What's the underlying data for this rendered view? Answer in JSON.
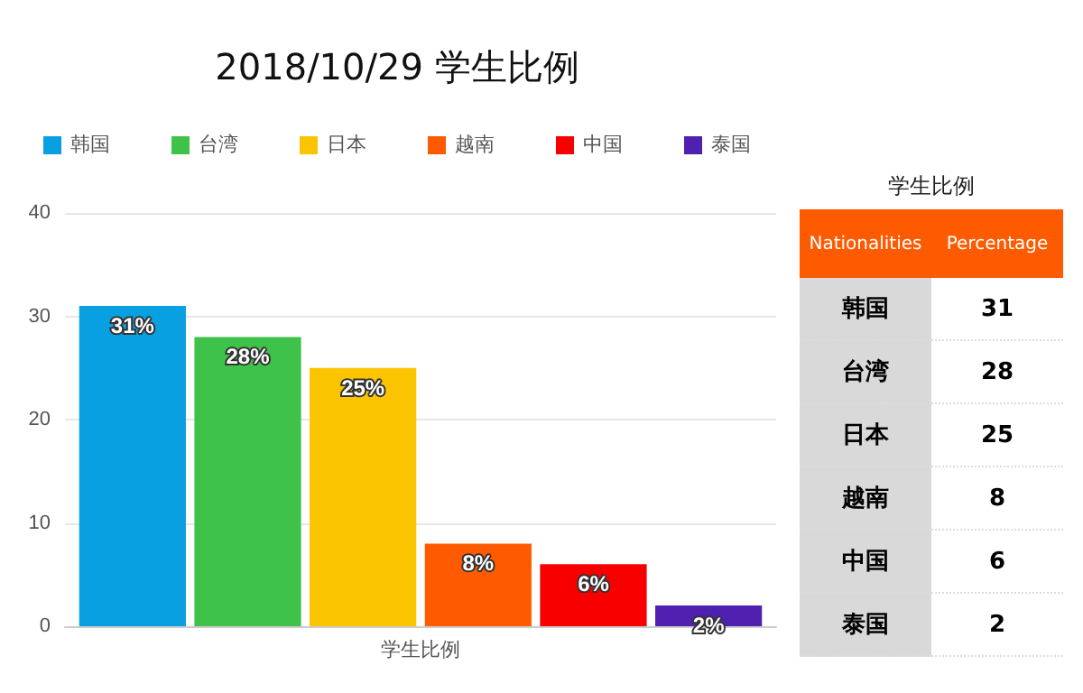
{
  "chart_data": [
    {
      "type": "bar",
      "title": "2018/10/29 学生比例",
      "categories": [
        "学生比例"
      ],
      "series": [
        {
          "name": "韩国",
          "color": "#08a0e0",
          "values": [
            31
          ],
          "value_labels": [
            "31%"
          ]
        },
        {
          "name": "台湾",
          "color": "#3ec24a",
          "values": [
            28
          ],
          "value_labels": [
            "28%"
          ]
        },
        {
          "name": "日本",
          "color": "#fbc400",
          "values": [
            25
          ],
          "value_labels": [
            "25%"
          ]
        },
        {
          "name": "越南",
          "color": "#fe5a00",
          "values": [
            8
          ],
          "value_labels": [
            "8%"
          ]
        },
        {
          "name": "中国",
          "color": "#f80000",
          "values": [
            6
          ],
          "value_labels": [
            "6%"
          ]
        },
        {
          "name": "泰国",
          "color": "#5020b0",
          "values": [
            2
          ],
          "value_labels": [
            "2%"
          ]
        }
      ],
      "ylim": [
        0,
        40
      ],
      "yticks": [
        0,
        10,
        20,
        30,
        40
      ],
      "grid": "y",
      "legend": "top"
    },
    {
      "type": "other",
      "title": "学生比例",
      "xlabel": "Nationalities",
      "ylabel": "Percentage",
      "categories": [
        "韩国",
        "台湾",
        "日本",
        "越南",
        "中国",
        "泰国"
      ],
      "values": [
        31,
        28,
        25,
        8,
        6,
        2
      ],
      "data_labels": true
    }
  ]
}
